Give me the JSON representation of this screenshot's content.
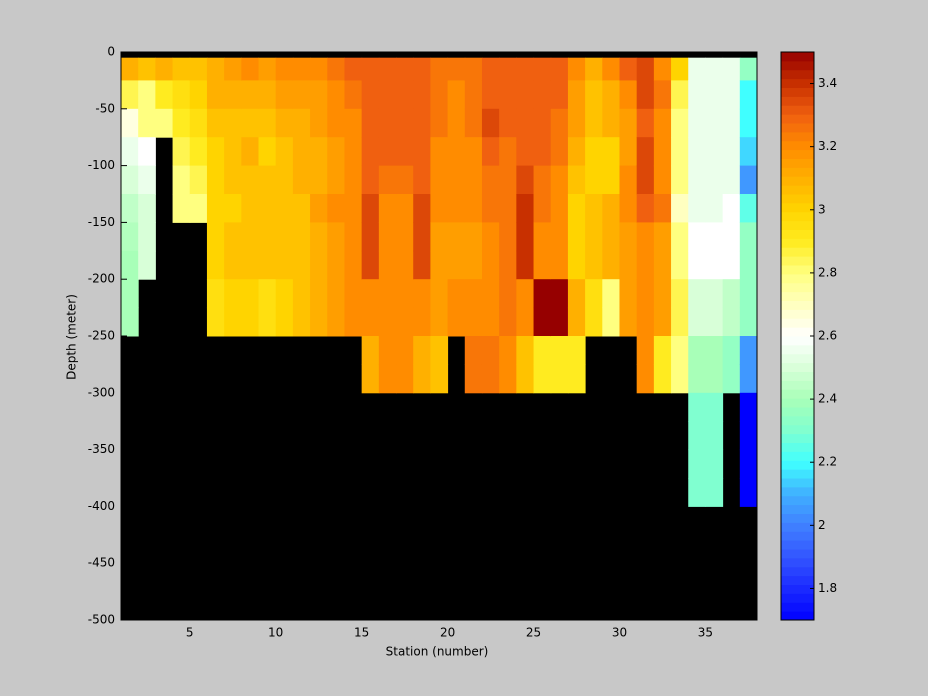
{
  "chart_data": {
    "type": "heatmap",
    "x_label": "Station (number)",
    "y_label": "Depth (meter)",
    "xlim": [
      1,
      38
    ],
    "xticks": [
      5,
      10,
      15,
      20,
      25,
      30,
      35
    ],
    "ylim": [
      -500,
      0
    ],
    "yticks": [
      -500,
      -450,
      -400,
      -350,
      -300,
      -250,
      -200,
      -150,
      -100,
      -50,
      0
    ],
    "clim": [
      1.7,
      3.5
    ],
    "cticks": [
      1.8,
      2,
      2.2,
      2.4,
      2.6,
      2.8,
      3,
      3.2,
      3.4
    ],
    "colormap": [
      "#0000ff",
      "#1a2aff",
      "#3355ff",
      "#4080ff",
      "#40b0ff",
      "#40ffff",
      "#80ffd0",
      "#a8ffb8",
      "#d8ffd8",
      "#ffffff",
      "#ffffc0",
      "#ffff80",
      "#ffeb20",
      "#ffd400",
      "#ffb000",
      "#ff8c00",
      "#f06010",
      "#c83000",
      "#960000"
    ],
    "missing_color": "#000000",
    "x_edges": [
      1,
      2,
      3,
      4,
      5,
      6,
      7,
      8,
      9,
      10,
      11,
      12,
      13,
      14,
      15,
      16,
      17,
      18,
      19,
      20,
      21,
      22,
      23,
      24,
      25,
      26,
      27,
      28,
      29,
      30,
      31,
      32,
      33,
      34,
      35,
      36,
      37,
      38
    ],
    "y_edges": [
      -5,
      -25,
      -50,
      -75,
      -100,
      -125,
      -150,
      -175,
      -200,
      -225,
      -250,
      -275,
      -300,
      -325,
      -350,
      -375,
      -400
    ],
    "values": [
      [
        3.1,
        2.85,
        2.65,
        2.55,
        2.5,
        2.45,
        2.42,
        2.4,
        2.4,
        2.4,
        null,
        null,
        null,
        null,
        null,
        null
      ],
      [
        3.05,
        2.8,
        2.8,
        2.6,
        2.55,
        2.5,
        2.5,
        2.5,
        null,
        null,
        null,
        null,
        null,
        null,
        null,
        null
      ],
      [
        3.1,
        2.9,
        2.8,
        null,
        null,
        null,
        null,
        null,
        null,
        null,
        null,
        null,
        null,
        null,
        null,
        null
      ],
      [
        3.05,
        2.95,
        2.9,
        2.85,
        2.8,
        2.8,
        null,
        null,
        null,
        null,
        null,
        null,
        null,
        null,
        null,
        null
      ],
      [
        3.05,
        3.0,
        2.95,
        2.9,
        2.85,
        2.8,
        null,
        null,
        null,
        null,
        null,
        null,
        null,
        null,
        null,
        null
      ],
      [
        3.1,
        3.1,
        3.05,
        3.0,
        3.0,
        3.0,
        3.0,
        3.0,
        2.95,
        2.95,
        null,
        null,
        null,
        null,
        null,
        null
      ],
      [
        3.15,
        3.1,
        3.05,
        3.05,
        3.05,
        3.0,
        3.05,
        3.05,
        3.0,
        3.0,
        null,
        null,
        null,
        null,
        null,
        null
      ],
      [
        3.2,
        3.1,
        3.05,
        3.1,
        3.05,
        3.05,
        3.05,
        3.05,
        3.0,
        3.0,
        null,
        null,
        null,
        null,
        null,
        null
      ],
      [
        3.15,
        3.1,
        3.05,
        3.0,
        3.05,
        3.05,
        3.05,
        3.05,
        2.95,
        2.95,
        null,
        null,
        null,
        null,
        null,
        null
      ],
      [
        3.2,
        3.15,
        3.1,
        3.05,
        3.05,
        3.05,
        3.05,
        3.05,
        3.0,
        3.0,
        null,
        null,
        null,
        null,
        null,
        null
      ],
      [
        3.2,
        3.15,
        3.1,
        3.1,
        3.1,
        3.05,
        3.05,
        3.05,
        3.05,
        3.05,
        null,
        null,
        null,
        null,
        null,
        null
      ],
      [
        3.2,
        3.15,
        3.15,
        3.1,
        3.1,
        3.15,
        3.1,
        3.1,
        3.1,
        3.1,
        null,
        null,
        null,
        null,
        null,
        null
      ],
      [
        3.25,
        3.2,
        3.2,
        3.15,
        3.15,
        3.2,
        3.15,
        3.15,
        3.15,
        3.15,
        null,
        null,
        null,
        null,
        null,
        null
      ],
      [
        3.3,
        3.25,
        3.2,
        3.2,
        3.2,
        3.2,
        3.2,
        3.2,
        3.2,
        3.2,
        null,
        null,
        null,
        null,
        null,
        null
      ],
      [
        3.3,
        3.3,
        3.3,
        3.3,
        3.3,
        3.35,
        3.35,
        3.35,
        3.2,
        3.2,
        3.1,
        3.1,
        null,
        null,
        null,
        null
      ],
      [
        3.3,
        3.3,
        3.3,
        3.3,
        3.25,
        3.2,
        3.2,
        3.2,
        3.2,
        3.2,
        3.2,
        3.2,
        null,
        null,
        null,
        null
      ],
      [
        3.3,
        3.3,
        3.3,
        3.3,
        3.25,
        3.2,
        3.2,
        3.2,
        3.2,
        3.2,
        3.2,
        3.2,
        null,
        null,
        null,
        null
      ],
      [
        3.3,
        3.3,
        3.3,
        3.3,
        3.3,
        3.35,
        3.35,
        3.35,
        3.2,
        3.2,
        3.1,
        3.1,
        null,
        null,
        null,
        null
      ],
      [
        3.25,
        3.25,
        3.25,
        3.2,
        3.2,
        3.2,
        3.15,
        3.15,
        3.15,
        3.15,
        3.05,
        3.05,
        null,
        null,
        null,
        null
      ],
      [
        3.25,
        3.2,
        3.2,
        3.2,
        3.2,
        3.2,
        3.15,
        3.15,
        3.2,
        3.2,
        null,
        null,
        null,
        null,
        null,
        null
      ],
      [
        3.25,
        3.25,
        3.25,
        3.2,
        3.2,
        3.2,
        3.15,
        3.15,
        3.2,
        3.2,
        3.25,
        3.25,
        null,
        null,
        null,
        null
      ],
      [
        3.3,
        3.3,
        3.35,
        3.3,
        3.25,
        3.25,
        3.2,
        3.2,
        3.2,
        3.2,
        3.25,
        3.25,
        null,
        null,
        null,
        null
      ],
      [
        3.3,
        3.3,
        3.3,
        3.25,
        3.25,
        3.25,
        3.25,
        3.25,
        3.25,
        3.25,
        3.2,
        3.2,
        null,
        null,
        null,
        null
      ],
      [
        3.3,
        3.3,
        3.3,
        3.3,
        3.35,
        3.4,
        3.4,
        3.4,
        3.2,
        3.2,
        3.05,
        3.05,
        null,
        null,
        null,
        null
      ],
      [
        3.3,
        3.3,
        3.3,
        3.3,
        3.25,
        3.25,
        3.2,
        3.2,
        3.5,
        3.5,
        2.9,
        2.9,
        null,
        null,
        null,
        null
      ],
      [
        3.3,
        3.3,
        3.25,
        3.25,
        3.2,
        3.2,
        3.2,
        3.2,
        3.5,
        3.5,
        2.9,
        2.9,
        null,
        null,
        null,
        null
      ],
      [
        3.2,
        3.15,
        3.15,
        3.1,
        3.05,
        3.0,
        3.0,
        3.0,
        3.1,
        3.1,
        2.9,
        2.9,
        null,
        null,
        null,
        null
      ],
      [
        3.1,
        3.05,
        3.05,
        3.0,
        3.0,
        3.05,
        3.05,
        3.05,
        2.95,
        2.95,
        null,
        null,
        null,
        null,
        null,
        null
      ],
      [
        3.2,
        3.1,
        3.1,
        3.0,
        3.0,
        3.1,
        3.1,
        3.1,
        2.8,
        2.8,
        null,
        null,
        null,
        null,
        null,
        null
      ],
      [
        3.3,
        3.2,
        3.15,
        3.15,
        3.2,
        3.2,
        3.15,
        3.15,
        3.15,
        3.15,
        null,
        null,
        null,
        null,
        null,
        null
      ],
      [
        3.35,
        3.35,
        3.3,
        3.35,
        3.35,
        3.3,
        3.2,
        3.2,
        3.2,
        3.2,
        3.2,
        3.2,
        null,
        null,
        null,
        null
      ],
      [
        3.2,
        3.25,
        3.2,
        3.2,
        3.2,
        3.25,
        3.15,
        3.15,
        3.15,
        3.15,
        2.9,
        2.9,
        null,
        null,
        null,
        null
      ],
      [
        3.0,
        2.85,
        2.8,
        2.8,
        2.8,
        2.7,
        2.8,
        2.8,
        2.85,
        2.85,
        2.8,
        2.8,
        null,
        null,
        null,
        null
      ],
      [
        2.55,
        2.55,
        2.55,
        2.55,
        2.55,
        2.55,
        2.6,
        2.6,
        2.5,
        2.5,
        2.4,
        2.4,
        2.3,
        2.3,
        2.3,
        2.3
      ],
      [
        2.55,
        2.55,
        2.55,
        2.55,
        2.55,
        2.55,
        2.6,
        2.6,
        2.5,
        2.5,
        2.4,
        2.4,
        2.3,
        2.3,
        2.3,
        2.3
      ],
      [
        2.55,
        2.55,
        2.55,
        2.55,
        2.55,
        2.6,
        2.6,
        2.6,
        2.45,
        2.45,
        2.35,
        2.35,
        null,
        null,
        null,
        null
      ],
      [
        2.35,
        2.2,
        2.2,
        2.15,
        2.05,
        2.25,
        2.35,
        2.35,
        2.35,
        2.35,
        2.05,
        2.05,
        1.7,
        1.7,
        1.7,
        1.7
      ]
    ]
  }
}
